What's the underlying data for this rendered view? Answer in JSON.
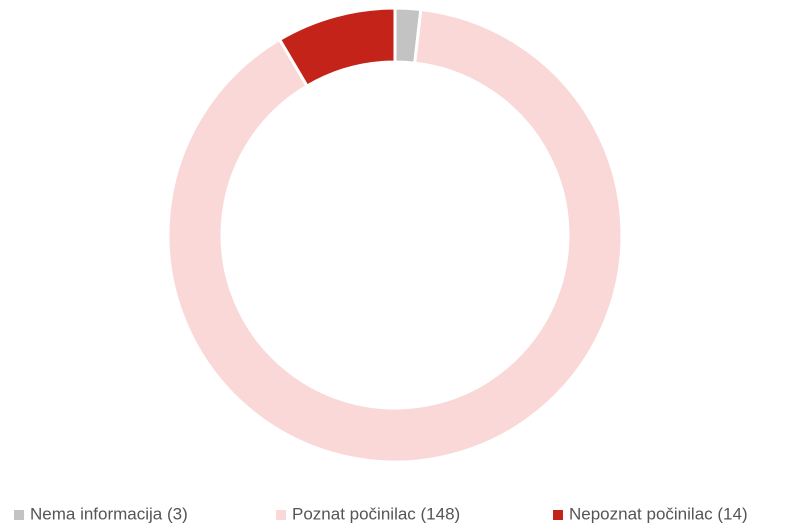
{
  "chart_data": {
    "type": "donut",
    "categories": [
      "Nema informacija (3)",
      "Poznat počinilac (148)",
      "Nepoznat počinilac (14)"
    ],
    "values": [
      3,
      148,
      14
    ],
    "colors": [
      "#c3c3c3",
      "#f9d8d7",
      "#c4231a"
    ],
    "legend": "bottom"
  }
}
